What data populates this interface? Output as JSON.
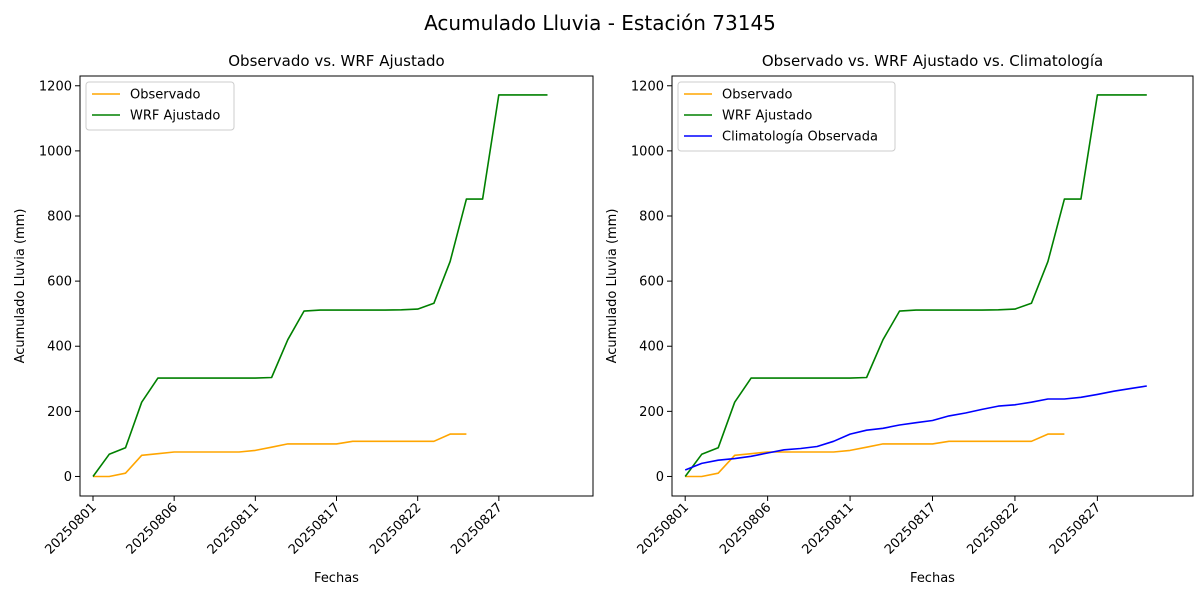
{
  "figure": {
    "title": "Acumulado Lluvia - Estación 73145"
  },
  "chart_data": [
    {
      "type": "line",
      "title": "Observado vs. WRF Ajustado",
      "xlabel": "Fechas",
      "ylabel": "Acumulado Lluvia (mm)",
      "ylim": [
        -60,
        1230
      ],
      "yticks": [
        0,
        200,
        400,
        600,
        800,
        1000,
        1200
      ],
      "xlim": [
        0.2,
        31.8
      ],
      "xticks": [
        {
          "day": 1,
          "label": "20250801"
        },
        {
          "day": 6,
          "label": "20250806"
        },
        {
          "day": 11,
          "label": "20250811"
        },
        {
          "day": 16,
          "label": "20250817"
        },
        {
          "day": 21,
          "label": "20250822"
        },
        {
          "day": 26,
          "label": "20250827"
        }
      ],
      "grid": false,
      "legend_position": "upper-left",
      "series": [
        {
          "name": "Observado",
          "color": "#ffa500",
          "x": [
            1,
            2,
            3,
            4,
            5,
            6,
            7,
            8,
            9,
            10,
            11,
            12,
            13,
            14,
            15,
            16,
            17,
            18,
            19,
            20,
            21,
            22,
            23,
            24
          ],
          "values": [
            0,
            0,
            10,
            65,
            70,
            75,
            75,
            75,
            75,
            75,
            80,
            90,
            100,
            100,
            100,
            100,
            108,
            108,
            108,
            108,
            108,
            108,
            130,
            130
          ]
        },
        {
          "name": "WRF Ajustado",
          "color": "#008000",
          "x": [
            1,
            2,
            3,
            4,
            5,
            6,
            7,
            8,
            9,
            10,
            11,
            12,
            13,
            14,
            15,
            16,
            17,
            18,
            19,
            20,
            21,
            22,
            23,
            24,
            25,
            26,
            27,
            28,
            29
          ],
          "values": [
            0,
            68,
            88,
            228,
            302,
            302,
            302,
            302,
            302,
            302,
            302,
            304,
            420,
            508,
            511,
            511,
            511,
            511,
            511,
            512,
            514,
            532,
            660,
            852,
            852,
            1172,
            1172,
            1172,
            1172
          ]
        }
      ]
    },
    {
      "type": "line",
      "title": "Observado vs. WRF Ajustado vs. Climatología",
      "xlabel": "Fechas",
      "ylabel": "Acumulado Lluvia (mm)",
      "ylim": [
        -60,
        1230
      ],
      "yticks": [
        0,
        200,
        400,
        600,
        800,
        1000,
        1200
      ],
      "xlim": [
        0.2,
        31.8
      ],
      "xticks": [
        {
          "day": 1,
          "label": "20250801"
        },
        {
          "day": 6,
          "label": "20250806"
        },
        {
          "day": 11,
          "label": "20250811"
        },
        {
          "day": 16,
          "label": "20250817"
        },
        {
          "day": 21,
          "label": "20250822"
        },
        {
          "day": 26,
          "label": "20250827"
        }
      ],
      "grid": false,
      "legend_position": "upper-left",
      "series": [
        {
          "name": "Observado",
          "color": "#ffa500",
          "x": [
            1,
            2,
            3,
            4,
            5,
            6,
            7,
            8,
            9,
            10,
            11,
            12,
            13,
            14,
            15,
            16,
            17,
            18,
            19,
            20,
            21,
            22,
            23,
            24
          ],
          "values": [
            0,
            0,
            10,
            65,
            70,
            75,
            75,
            75,
            75,
            75,
            80,
            90,
            100,
            100,
            100,
            100,
            108,
            108,
            108,
            108,
            108,
            108,
            130,
            130
          ]
        },
        {
          "name": "WRF Ajustado",
          "color": "#008000",
          "x": [
            1,
            2,
            3,
            4,
            5,
            6,
            7,
            8,
            9,
            10,
            11,
            12,
            13,
            14,
            15,
            16,
            17,
            18,
            19,
            20,
            21,
            22,
            23,
            24,
            25,
            26,
            27,
            28,
            29
          ],
          "values": [
            0,
            68,
            88,
            228,
            302,
            302,
            302,
            302,
            302,
            302,
            302,
            304,
            420,
            508,
            511,
            511,
            511,
            511,
            511,
            512,
            514,
            532,
            660,
            852,
            852,
            1172,
            1172,
            1172,
            1172
          ]
        },
        {
          "name": "Climatología Observada",
          "color": "#0000ff",
          "x": [
            1,
            2,
            3,
            4,
            5,
            6,
            7,
            8,
            9,
            10,
            11,
            12,
            13,
            14,
            15,
            16,
            17,
            18,
            19,
            20,
            21,
            22,
            23,
            24,
            25,
            26,
            27,
            28,
            29
          ],
          "values": [
            20,
            40,
            50,
            55,
            62,
            72,
            82,
            86,
            92,
            108,
            130,
            142,
            148,
            158,
            165,
            172,
            186,
            195,
            206,
            216,
            220,
            228,
            238,
            238,
            243,
            252,
            262,
            270,
            278
          ]
        }
      ]
    }
  ]
}
